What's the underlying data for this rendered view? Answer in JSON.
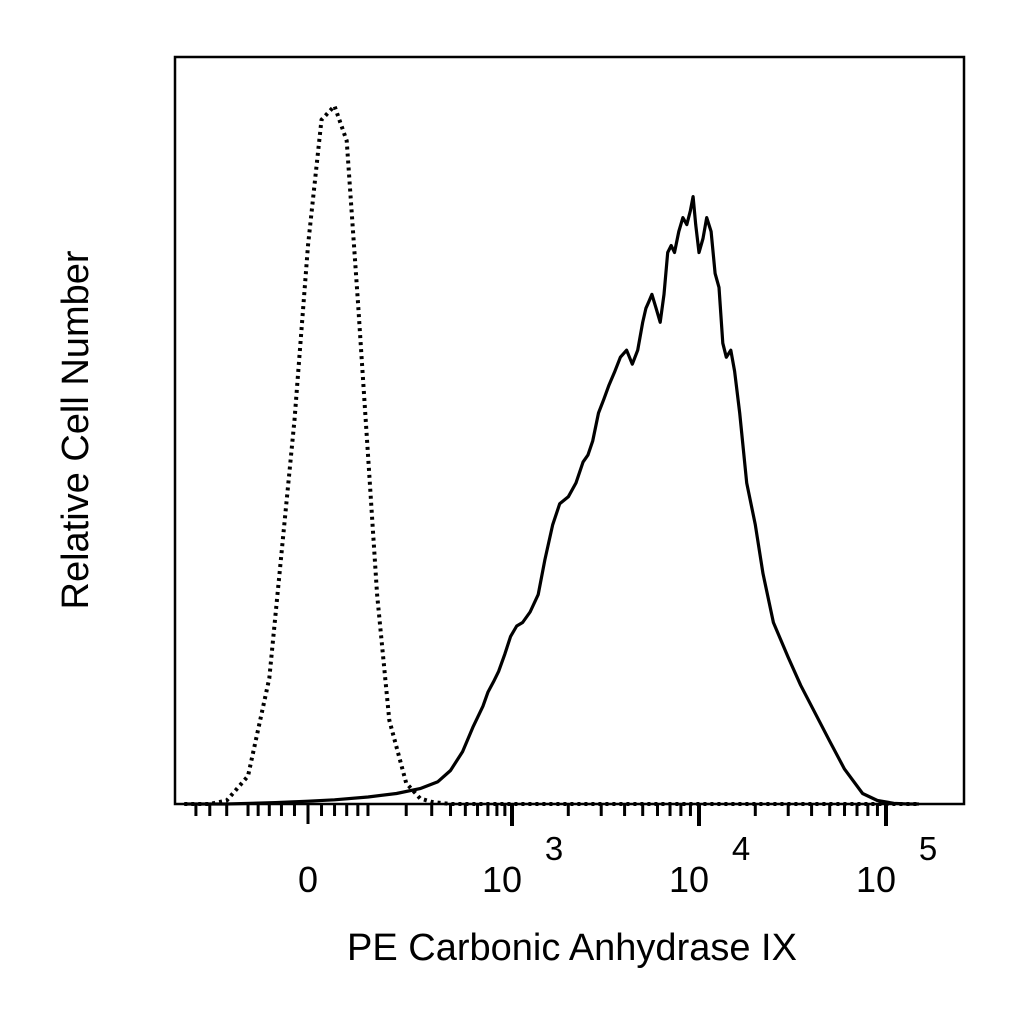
{
  "chart_data": {
    "type": "line",
    "title": "",
    "xlabel": "PE Carbonic Anhydrase IX",
    "ylabel": "Relative Cell Number",
    "x_scale": "biexponential",
    "xlim": [
      -300,
      150000
    ],
    "ylim": [
      0,
      1.07
    ],
    "grid": false,
    "legend": "none",
    "x_tick_labels": [
      {
        "value": 0,
        "text": "0"
      },
      {
        "value": 1000,
        "base": "10",
        "exp": "3"
      },
      {
        "value": 10000,
        "base": "10",
        "exp": "4"
      },
      {
        "value": 100000,
        "base": "10",
        "exp": "5"
      }
    ],
    "series": [
      {
        "style": "dotted",
        "color": "#000000",
        "x": [
          -300,
          -200,
          -150,
          -100,
          -60,
          -20,
          0,
          20,
          40,
          60,
          80,
          100,
          120,
          150,
          200,
          250,
          300,
          400,
          600,
          1000,
          10000,
          150000
        ],
        "y": [
          0,
          0,
          0.005,
          0.04,
          0.18,
          0.55,
          0.8,
          0.98,
          1.0,
          0.95,
          0.72,
          0.5,
          0.3,
          0.12,
          0.03,
          0.008,
          0.003,
          0,
          0,
          0,
          0,
          0
        ]
      },
      {
        "style": "solid",
        "color": "#000000",
        "x": [
          -300,
          -150,
          -50,
          0,
          40,
          100,
          170,
          250,
          330,
          400,
          480,
          560,
          650,
          700,
          760,
          820,
          900,
          980,
          1060,
          1140,
          1250,
          1380,
          1500,
          1650,
          1800,
          2000,
          2200,
          2400,
          2550,
          2700,
          2900,
          3100,
          3300,
          3550,
          3800,
          4100,
          4400,
          4700,
          5000,
          5200,
          5400,
          5600,
          5900,
          6200,
          6500,
          6800,
          7100,
          7400,
          7800,
          8200,
          8600,
          9000,
          9300,
          9600,
          10000,
          10500,
          11000,
          11600,
          12200,
          12800,
          13400,
          14000,
          14800,
          15500,
          16500,
          18000,
          20000,
          22000,
          25000,
          30000,
          35000,
          40000,
          50000,
          60000,
          75000,
          90000,
          110000,
          130000,
          150000
        ],
        "y": [
          0,
          0,
          0.002,
          0.004,
          0.006,
          0.01,
          0.015,
          0.022,
          0.032,
          0.048,
          0.075,
          0.11,
          0.14,
          0.16,
          0.175,
          0.19,
          0.215,
          0.24,
          0.255,
          0.26,
          0.275,
          0.3,
          0.35,
          0.4,
          0.43,
          0.44,
          0.46,
          0.49,
          0.5,
          0.52,
          0.56,
          0.58,
          0.6,
          0.62,
          0.64,
          0.65,
          0.63,
          0.65,
          0.69,
          0.71,
          0.72,
          0.73,
          0.71,
          0.69,
          0.73,
          0.79,
          0.8,
          0.79,
          0.82,
          0.84,
          0.83,
          0.85,
          0.87,
          0.83,
          0.79,
          0.81,
          0.84,
          0.82,
          0.76,
          0.74,
          0.66,
          0.64,
          0.65,
          0.62,
          0.56,
          0.46,
          0.4,
          0.33,
          0.26,
          0.21,
          0.17,
          0.14,
          0.09,
          0.05,
          0.015,
          0.005,
          0.001,
          0,
          0
        ]
      }
    ]
  }
}
